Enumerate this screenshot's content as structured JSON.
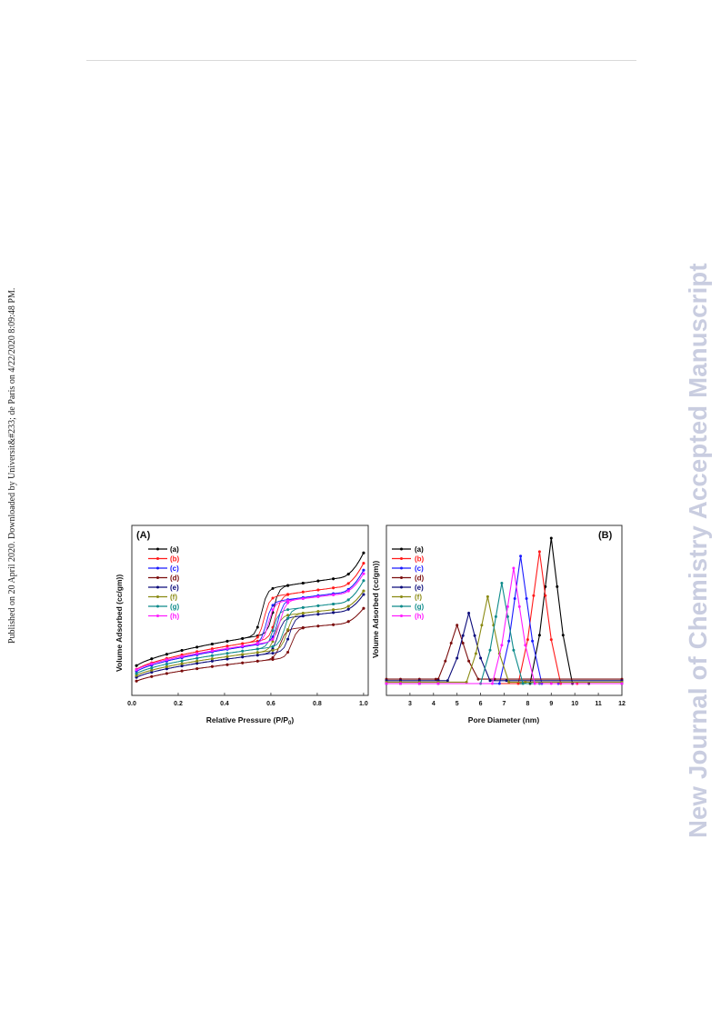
{
  "page": {
    "side_note": "Published on 20 April 2020. Downloaded by Universit&#233; de Paris on 4/22/2020 8:09:48 PM.",
    "journal_watermark": "New Journal of Chemistry Accepted Manuscript"
  },
  "series_colors": {
    "(a)": "#000000",
    "(b)": "#ff1a1a",
    "(c)": "#1a1aff",
    "(d)": "#7a0c0c",
    "(e)": "#0a0a7a",
    "(f)": "#8a8a12",
    "(g)": "#0e8b8b",
    "(h)": "#ff1aff"
  },
  "chart_data": [
    {
      "panel": "(A)",
      "type": "line",
      "xlabel": "Relative Pressure (P/P",
      "xlabel_sub": "0",
      "xlabel_close": ")",
      "ylabel": "Volume Adsorbed (cc/gm))",
      "xlim": [
        0,
        1.02
      ],
      "ylim": [
        0,
        100
      ],
      "xticks": [
        "0.0",
        "0.2",
        "0.4",
        "0.6",
        "0.8",
        "1.0"
      ],
      "legend_position": "top-left",
      "y_tick_labels": false,
      "series": [
        {
          "name": "(a)",
          "c": 0.61,
          "base": 14,
          "slope": 40,
          "jump": 27,
          "top": 82,
          "hw": 0.05
        },
        {
          "name": "(b)",
          "c": 0.62,
          "base": 12,
          "slope": 38,
          "jump": 25,
          "top": 76,
          "hw": 0.05
        },
        {
          "name": "(c)",
          "c": 0.63,
          "base": 11,
          "slope": 36,
          "jump": 24,
          "top": 72,
          "hw": 0.05
        },
        {
          "name": "(d)",
          "c": 0.69,
          "base": 6,
          "slope": 27,
          "jump": 17,
          "top": 50,
          "hw": 0.05
        },
        {
          "name": "(e)",
          "c": 0.68,
          "base": 8,
          "slope": 30,
          "jump": 20,
          "top": 58,
          "hw": 0.05
        },
        {
          "name": "(f)",
          "c": 0.67,
          "base": 9,
          "slope": 31,
          "jump": 20,
          "top": 60,
          "hw": 0.05
        },
        {
          "name": "(g)",
          "c": 0.66,
          "base": 10,
          "slope": 33,
          "jump": 21,
          "top": 66,
          "hw": 0.05
        },
        {
          "name": "(h)",
          "c": 0.64,
          "base": 12,
          "slope": 35,
          "jump": 23,
          "top": 70,
          "hw": 0.05
        }
      ]
    },
    {
      "panel": "(B)",
      "type": "line",
      "xlabel": "Pore Diameter (nm)",
      "ylabel": "Volume Adsorbed (cc/gm))",
      "xlim": [
        2,
        12
      ],
      "ylim": [
        0,
        100
      ],
      "xticks": [
        "3",
        "4",
        "5",
        "6",
        "7",
        "8",
        "9",
        "10",
        "11",
        "12"
      ],
      "legend_position": "top-left",
      "y_tick_labels": false,
      "series": [
        {
          "name": "(a)",
          "peak_x": 9.0,
          "peak_y": 100,
          "baseline": 3
        },
        {
          "name": "(b)",
          "peak_x": 8.5,
          "peak_y": 91,
          "baseline": 3
        },
        {
          "name": "(c)",
          "peak_x": 7.7,
          "peak_y": 88,
          "baseline": 3
        },
        {
          "name": "(d)",
          "peak_x": 5.0,
          "peak_y": 42,
          "baseline": 6
        },
        {
          "name": "(e)",
          "peak_x": 5.5,
          "peak_y": 50,
          "baseline": 5
        },
        {
          "name": "(f)",
          "peak_x": 6.3,
          "peak_y": 61,
          "baseline": 4
        },
        {
          "name": "(g)",
          "peak_x": 6.9,
          "peak_y": 70,
          "baseline": 3
        },
        {
          "name": "(h)",
          "peak_x": 7.4,
          "peak_y": 80,
          "baseline": 3
        }
      ]
    }
  ]
}
